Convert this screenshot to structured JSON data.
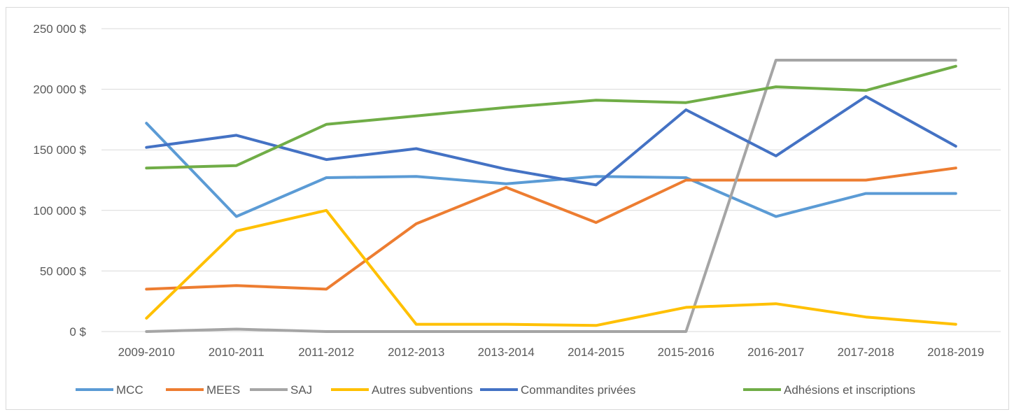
{
  "chart_data": {
    "type": "line",
    "title": "",
    "xlabel": "",
    "ylabel": "",
    "categories": [
      "2009-2010",
      "2010-2011",
      "2011-2012",
      "2012-2013",
      "2013-2014",
      "2014-2015",
      "2015-2016",
      "2016-2017",
      "2017-2018",
      "2018-2019"
    ],
    "ylim": [
      0,
      250000
    ],
    "yticks": [
      0,
      50000,
      100000,
      150000,
      200000,
      250000
    ],
    "ytick_labels": [
      "0 $",
      "50 000 $",
      "100 000 $",
      "150 000 $",
      "200 000 $",
      "250 000 $"
    ],
    "grid": true,
    "legend_position": "bottom",
    "series": [
      {
        "name": "MCC",
        "color": "#5b9bd5",
        "values": [
          172000,
          95000,
          127000,
          128000,
          122000,
          128000,
          127000,
          95000,
          114000,
          114000
        ]
      },
      {
        "name": "MEES",
        "color": "#ed7d31",
        "values": [
          35000,
          38000,
          35000,
          89000,
          119000,
          90000,
          125000,
          125000,
          125000,
          135000
        ]
      },
      {
        "name": "SAJ",
        "color": "#a5a5a5",
        "values": [
          0,
          2000,
          0,
          0,
          0,
          0,
          0,
          224000,
          224000,
          224000
        ]
      },
      {
        "name": "Autres subventions",
        "color": "#ffc000",
        "values": [
          11000,
          83000,
          100000,
          6000,
          6000,
          5000,
          20000,
          23000,
          12000,
          6000
        ]
      },
      {
        "name": "Commandites privées",
        "color": "#4472c4",
        "values": [
          152000,
          162000,
          142000,
          151000,
          134000,
          121000,
          183000,
          145000,
          194000,
          153000
        ]
      },
      {
        "name": "Adhésions et inscriptions",
        "color": "#70ad47",
        "values": [
          135000,
          137000,
          171000,
          178000,
          185000,
          191000,
          189000,
          202000,
          199000,
          219000
        ]
      }
    ]
  }
}
